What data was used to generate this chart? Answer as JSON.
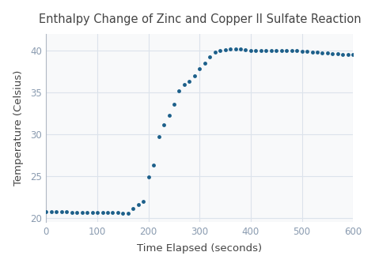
{
  "title": "Enthalpy Change of Zinc and Copper II Sulfate Reaction",
  "xlabel": "Time Elapsed (seconds)",
  "ylabel": "Temperature (Celsius)",
  "dot_color": "#1c5f8a",
  "background_color": "#ffffff",
  "plot_bg_color": "#f8f9fa",
  "grid_color": "#dce3eb",
  "spine_color": "#b0b8c4",
  "tick_color": "#8a9bb0",
  "text_color": "#444444",
  "x": [
    0,
    10,
    20,
    30,
    40,
    50,
    60,
    70,
    80,
    90,
    100,
    110,
    120,
    130,
    140,
    150,
    160,
    170,
    180,
    190,
    200,
    210,
    220,
    230,
    240,
    250,
    260,
    270,
    280,
    290,
    300,
    310,
    320,
    330,
    340,
    350,
    360,
    370,
    380,
    390,
    400,
    410,
    420,
    430,
    440,
    450,
    460,
    470,
    480,
    490,
    500,
    510,
    520,
    530,
    540,
    550,
    560,
    570,
    580,
    590,
    600
  ],
  "y": [
    20.8,
    20.8,
    20.8,
    20.8,
    20.8,
    20.7,
    20.7,
    20.7,
    20.7,
    20.7,
    20.7,
    20.7,
    20.7,
    20.7,
    20.7,
    20.6,
    20.6,
    21.1,
    21.6,
    22.0,
    24.9,
    26.3,
    29.7,
    31.1,
    32.3,
    33.6,
    35.2,
    35.9,
    36.3,
    37.0,
    37.8,
    38.5,
    39.2,
    39.8,
    40.0,
    40.1,
    40.2,
    40.2,
    40.2,
    40.1,
    40.0,
    40.0,
    40.0,
    40.0,
    40.0,
    40.0,
    40.0,
    40.0,
    40.0,
    40.0,
    39.9,
    39.9,
    39.8,
    39.8,
    39.7,
    39.7,
    39.6,
    39.6,
    39.5,
    39.5,
    39.5
  ],
  "xlim": [
    0,
    600
  ],
  "ylim": [
    19.5,
    42
  ],
  "xticks": [
    0,
    100,
    200,
    300,
    400,
    500,
    600
  ],
  "yticks": [
    20,
    25,
    30,
    35,
    40
  ],
  "marker_size": 3.5,
  "title_fontsize": 10.5,
  "label_fontsize": 9.5,
  "tick_fontsize": 8.5
}
